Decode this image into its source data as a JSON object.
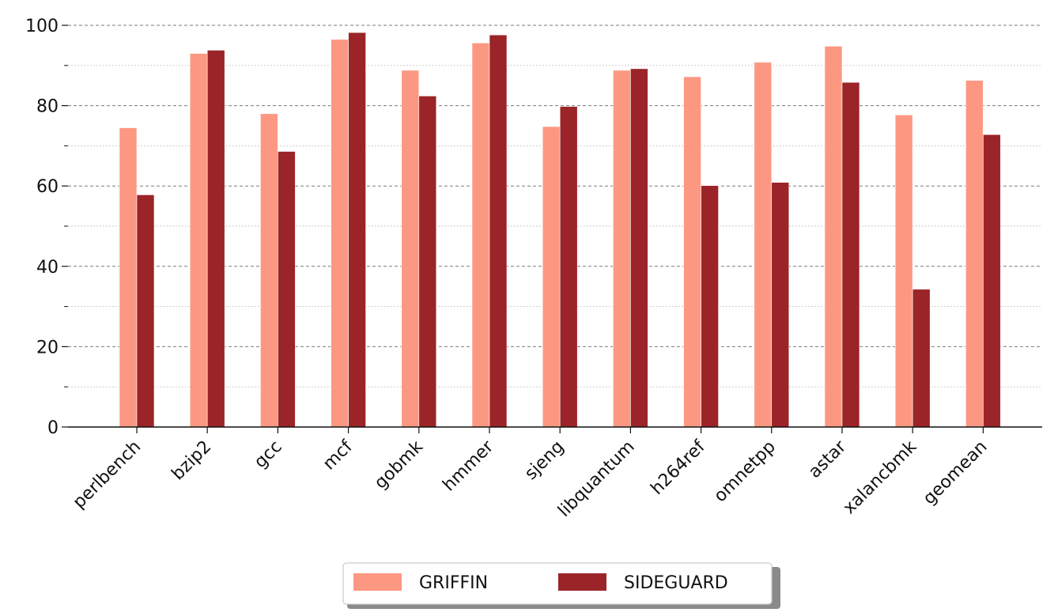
{
  "chart_data": {
    "type": "bar",
    "title": "",
    "xlabel": "",
    "ylabel": "",
    "ylim": [
      0,
      100
    ],
    "yticks": [
      0,
      20,
      40,
      60,
      80,
      100
    ],
    "grid": "major dashed, minor dotted (y only)",
    "legend_position": "bottom-center",
    "categories": [
      "perlbench",
      "bzip2",
      "gcc",
      "mcf",
      "gobmk",
      "hmmer",
      "sjeng",
      "libquantum",
      "h264ref",
      "omnetpp",
      "astar",
      "xalancbmk",
      "geomean"
    ],
    "series": [
      {
        "name": "GRIFFIN",
        "color": "#FC9882",
        "values": [
          74.5,
          93.0,
          78.0,
          96.5,
          88.8,
          95.6,
          74.8,
          88.8,
          87.2,
          90.8,
          94.8,
          77.7,
          86.3
        ]
      },
      {
        "name": "SIDEGUARD",
        "color": "#9A2428",
        "values": [
          57.8,
          93.8,
          68.6,
          98.2,
          82.4,
          97.6,
          79.8,
          89.2,
          60.1,
          60.9,
          85.8,
          34.3,
          72.8
        ]
      }
    ]
  }
}
